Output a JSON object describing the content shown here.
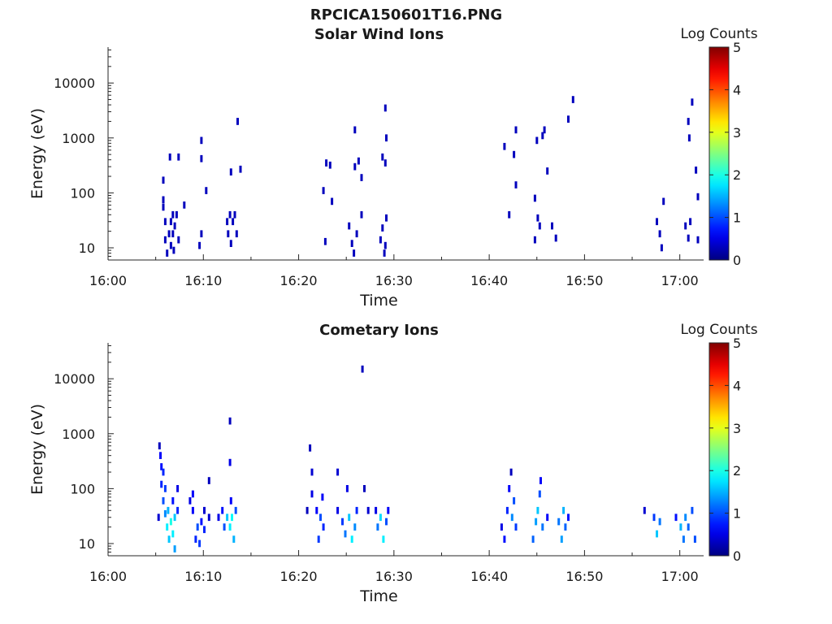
{
  "figure_title": "RPCICA150601T16.PNG",
  "chart_data": [
    {
      "type": "heatmap",
      "title": "Solar Wind Ions",
      "xlabel": "Time",
      "ylabel": "Energy (eV)",
      "x_ticks": [
        "16:00",
        "16:10",
        "16:20",
        "16:30",
        "16:40",
        "16:50",
        "17:00"
      ],
      "x_range_minutes_after_16_00": [
        0,
        62.5
      ],
      "y_ticks": [
        "10",
        "100",
        "1000",
        "10000"
      ],
      "y_scale": "log",
      "y_range_eV": [
        6,
        45000
      ],
      "colorbar": {
        "label": "Log Counts",
        "ticks": [
          "0",
          "1",
          "2",
          "3",
          "4",
          "5"
        ],
        "range": [
          0,
          5
        ],
        "colormap": "jet"
      },
      "cells": [
        [
          5.8,
          55,
          0.3
        ],
        [
          5.8,
          75,
          0.3
        ],
        [
          5.8,
          170,
          0.3
        ],
        [
          6.0,
          30,
          0.3
        ],
        [
          6.0,
          14,
          0.3
        ],
        [
          6.2,
          8,
          0.3
        ],
        [
          6.4,
          18,
          0.3
        ],
        [
          6.6,
          30,
          0.3
        ],
        [
          6.6,
          11,
          0.3
        ],
        [
          6.8,
          40,
          0.3
        ],
        [
          6.8,
          18,
          0.3
        ],
        [
          6.9,
          9,
          0.3
        ],
        [
          7.0,
          25,
          0.3
        ],
        [
          7.2,
          40,
          0.3
        ],
        [
          7.4,
          14,
          0.3
        ],
        [
          6.5,
          450,
          0.3
        ],
        [
          7.4,
          450,
          0.3
        ],
        [
          8.0,
          60,
          0.3
        ],
        [
          9.6,
          11,
          0.3
        ],
        [
          9.8,
          18,
          0.3
        ],
        [
          9.8,
          900,
          0.3
        ],
        [
          9.8,
          420,
          0.3
        ],
        [
          10.3,
          110,
          0.3
        ],
        [
          12.5,
          30,
          0.3
        ],
        [
          12.6,
          18,
          0.3
        ],
        [
          12.8,
          40,
          0.3
        ],
        [
          12.9,
          12,
          0.3
        ],
        [
          13.1,
          30,
          0.3
        ],
        [
          13.3,
          40,
          0.3
        ],
        [
          13.5,
          18,
          0.3
        ],
        [
          12.9,
          240,
          0.3
        ],
        [
          13.6,
          2000,
          0.3
        ],
        [
          13.9,
          270,
          0.3
        ],
        [
          22.6,
          110,
          0.3
        ],
        [
          22.8,
          13,
          0.3
        ],
        [
          22.9,
          350,
          0.3
        ],
        [
          23.3,
          320,
          0.3
        ],
        [
          23.5,
          70,
          0.3
        ],
        [
          25.3,
          25,
          0.3
        ],
        [
          25.6,
          12,
          0.3
        ],
        [
          25.8,
          8,
          0.3
        ],
        [
          25.9,
          1400,
          0.3
        ],
        [
          25.9,
          300,
          0.3
        ],
        [
          26.1,
          18,
          0.3
        ],
        [
          26.3,
          380,
          0.3
        ],
        [
          26.6,
          40,
          0.3
        ],
        [
          26.6,
          190,
          0.3
        ],
        [
          28.6,
          14,
          0.3
        ],
        [
          28.8,
          23,
          0.3
        ],
        [
          29.0,
          8,
          0.3
        ],
        [
          29.1,
          11,
          0.3
        ],
        [
          28.8,
          450,
          0.3
        ],
        [
          29.1,
          350,
          0.3
        ],
        [
          29.1,
          3500,
          0.3
        ],
        [
          29.2,
          1000,
          0.3
        ],
        [
          29.2,
          35,
          0.3
        ],
        [
          41.6,
          700,
          0.3
        ],
        [
          42.1,
          40,
          0.3
        ],
        [
          42.6,
          500,
          0.3
        ],
        [
          42.8,
          1400,
          0.3
        ],
        [
          42.8,
          140,
          0.3
        ],
        [
          44.8,
          14,
          0.3
        ],
        [
          44.8,
          80,
          0.3
        ],
        [
          45.0,
          900,
          0.3
        ],
        [
          45.1,
          35,
          0.3
        ],
        [
          45.3,
          25,
          0.3
        ],
        [
          45.6,
          1100,
          0.3
        ],
        [
          45.8,
          1400,
          0.3
        ],
        [
          46.1,
          250,
          0.3
        ],
        [
          46.6,
          25,
          0.3
        ],
        [
          47.0,
          15,
          0.3
        ],
        [
          48.3,
          2200,
          0.3
        ],
        [
          48.8,
          5000,
          0.3
        ],
        [
          57.6,
          30,
          0.3
        ],
        [
          57.9,
          18,
          0.3
        ],
        [
          58.1,
          10,
          0.3
        ],
        [
          58.3,
          70,
          0.3
        ],
        [
          60.6,
          25,
          0.3
        ],
        [
          60.9,
          15,
          0.3
        ],
        [
          61.1,
          30,
          0.3
        ],
        [
          60.9,
          2000,
          0.3
        ],
        [
          61.0,
          1000,
          0.3
        ],
        [
          61.3,
          4500,
          0.3
        ],
        [
          61.7,
          260,
          0.3
        ],
        [
          61.9,
          85,
          0.3
        ],
        [
          61.9,
          14,
          0.3
        ]
      ]
    },
    {
      "type": "heatmap",
      "title": "Cometary Ions",
      "xlabel": "Time",
      "ylabel": "Energy (eV)",
      "x_ticks": [
        "16:00",
        "16:10",
        "16:20",
        "16:30",
        "16:40",
        "16:50",
        "17:00"
      ],
      "x_range_minutes_after_16_00": [
        0,
        62.5
      ],
      "y_ticks": [
        "10",
        "100",
        "1000",
        "10000"
      ],
      "y_scale": "log",
      "y_range_eV": [
        6,
        45000
      ],
      "colorbar": {
        "label": "Log Counts",
        "ticks": [
          "0",
          "1",
          "2",
          "3",
          "4",
          "5"
        ],
        "range": [
          0,
          5
        ],
        "colormap": "jet"
      },
      "cells": [
        [
          5.3,
          30,
          0.4
        ],
        [
          5.4,
          600,
          0.3
        ],
        [
          5.5,
          400,
          0.6
        ],
        [
          5.6,
          250,
          0.7
        ],
        [
          5.6,
          120,
          0.8
        ],
        [
          5.8,
          200,
          0.8
        ],
        [
          5.8,
          60,
          1.0
        ],
        [
          6.0,
          100,
          0.9
        ],
        [
          6.0,
          35,
          1.3
        ],
        [
          6.2,
          20,
          1.8
        ],
        [
          6.3,
          40,
          1.5
        ],
        [
          6.4,
          12,
          1.6
        ],
        [
          6.6,
          25,
          2.0
        ],
        [
          6.8,
          15,
          1.8
        ],
        [
          6.8,
          60,
          0.7
        ],
        [
          7.0,
          8,
          1.4
        ],
        [
          7.0,
          30,
          1.6
        ],
        [
          7.3,
          100,
          0.5
        ],
        [
          7.3,
          40,
          0.8
        ],
        [
          8.6,
          60,
          0.5
        ],
        [
          8.9,
          80,
          0.6
        ],
        [
          8.9,
          40,
          0.6
        ],
        [
          9.2,
          12,
          0.8
        ],
        [
          9.4,
          20,
          1.0
        ],
        [
          9.6,
          10,
          0.9
        ],
        [
          9.8,
          25,
          0.7
        ],
        [
          10.1,
          18,
          0.8
        ],
        [
          10.1,
          40,
          0.4
        ],
        [
          10.6,
          140,
          0.3
        ],
        [
          10.6,
          30,
          0.4
        ],
        [
          11.6,
          30,
          0.5
        ],
        [
          12.0,
          40,
          0.7
        ],
        [
          12.2,
          20,
          1.0
        ],
        [
          12.5,
          30,
          1.6
        ],
        [
          12.8,
          20,
          1.8
        ],
        [
          12.8,
          300,
          0.5
        ],
        [
          12.8,
          1700,
          0.3
        ],
        [
          13.0,
          30,
          1.9
        ],
        [
          13.2,
          12,
          1.5
        ],
        [
          13.4,
          40,
          1.0
        ],
        [
          12.9,
          60,
          0.6
        ],
        [
          20.9,
          40,
          0.3
        ],
        [
          21.2,
          550,
          0.3
        ],
        [
          21.4,
          200,
          0.4
        ],
        [
          21.4,
          80,
          0.5
        ],
        [
          21.9,
          40,
          0.6
        ],
        [
          22.1,
          12,
          0.9
        ],
        [
          22.3,
          30,
          1.0
        ],
        [
          22.6,
          20,
          0.8
        ],
        [
          22.5,
          70,
          0.6
        ],
        [
          24.1,
          200,
          0.4
        ],
        [
          24.1,
          40,
          0.5
        ],
        [
          24.6,
          25,
          0.9
        ],
        [
          24.9,
          15,
          1.2
        ],
        [
          25.3,
          30,
          1.6
        ],
        [
          25.6,
          12,
          1.8
        ],
        [
          25.9,
          20,
          1.3
        ],
        [
          26.1,
          40,
          0.8
        ],
        [
          25.1,
          100,
          0.5
        ],
        [
          26.9,
          100,
          0.3
        ],
        [
          27.3,
          40,
          0.4
        ],
        [
          28.1,
          40,
          0.5
        ],
        [
          28.3,
          20,
          1.2
        ],
        [
          28.6,
          30,
          1.7
        ],
        [
          28.9,
          12,
          1.8
        ],
        [
          29.2,
          25,
          1.0
        ],
        [
          29.4,
          40,
          0.6
        ],
        [
          26.7,
          15000,
          0.3
        ],
        [
          41.3,
          20,
          0.5
        ],
        [
          41.6,
          12,
          0.7
        ],
        [
          41.9,
          40,
          0.8
        ],
        [
          42.1,
          100,
          0.6
        ],
        [
          42.4,
          30,
          1.3
        ],
        [
          42.6,
          60,
          1.0
        ],
        [
          42.8,
          20,
          0.9
        ],
        [
          42.3,
          200,
          0.3
        ],
        [
          44.6,
          12,
          1.1
        ],
        [
          44.9,
          25,
          1.4
        ],
        [
          45.1,
          40,
          1.6
        ],
        [
          45.3,
          80,
          1.0
        ],
        [
          45.4,
          140,
          0.6
        ],
        [
          45.6,
          20,
          1.2
        ],
        [
          46.1,
          30,
          0.6
        ],
        [
          47.3,
          25,
          1.2
        ],
        [
          47.6,
          12,
          1.4
        ],
        [
          47.8,
          40,
          1.5
        ],
        [
          48.0,
          20,
          1.1
        ],
        [
          48.3,
          30,
          0.7
        ],
        [
          56.3,
          40,
          0.4
        ],
        [
          57.3,
          30,
          0.9
        ],
        [
          57.6,
          15,
          1.6
        ],
        [
          57.9,
          25,
          1.2
        ],
        [
          59.6,
          30,
          0.7
        ],
        [
          60.1,
          20,
          1.5
        ],
        [
          60.4,
          12,
          1.2
        ],
        [
          60.6,
          30,
          1.3
        ],
        [
          60.9,
          20,
          1.1
        ],
        [
          61.3,
          40,
          1.0
        ],
        [
          61.6,
          12,
          1.0
        ]
      ]
    }
  ]
}
